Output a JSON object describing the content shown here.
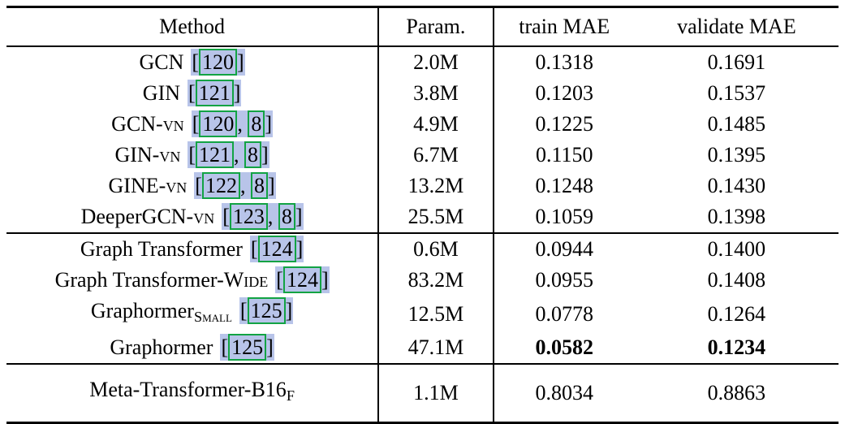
{
  "colors": {
    "cite_bg": "#b8c4e9",
    "cite_border": "#12a344",
    "rule": "#000000",
    "text": "#000000",
    "background": "#ffffff"
  },
  "table": {
    "headers": [
      {
        "key": "method",
        "label": "Method"
      },
      {
        "key": "param",
        "label": "Param."
      },
      {
        "key": "train",
        "label": "train MAE"
      },
      {
        "key": "validate",
        "label": "validate MAE"
      }
    ],
    "groups": [
      {
        "rows": [
          {
            "method": [
              {
                "text": "GCN"
              }
            ],
            "cites": [
              "120"
            ],
            "param": "2.0M",
            "train_mae": "0.1318",
            "validate_mae": "0.1691",
            "bold_metrics": false
          },
          {
            "method": [
              {
                "text": "GIN"
              }
            ],
            "cites": [
              "121"
            ],
            "param": "3.8M",
            "train_mae": "0.1203",
            "validate_mae": "0.1537",
            "bold_metrics": false
          },
          {
            "method": [
              {
                "text": "GCN-"
              },
              {
                "text": "vn",
                "style": "sc"
              }
            ],
            "cites": [
              "120",
              "8"
            ],
            "param": "4.9M",
            "train_mae": "0.1225",
            "validate_mae": "0.1485",
            "bold_metrics": false
          },
          {
            "method": [
              {
                "text": "GIN-"
              },
              {
                "text": "vn",
                "style": "sc"
              }
            ],
            "cites": [
              "121",
              "8"
            ],
            "param": "6.7M",
            "train_mae": "0.1150",
            "validate_mae": "0.1395",
            "bold_metrics": false
          },
          {
            "method": [
              {
                "text": "GINE-"
              },
              {
                "text": "vn",
                "style": "sc"
              }
            ],
            "cites": [
              "122",
              "8"
            ],
            "param": "13.2M",
            "train_mae": "0.1248",
            "validate_mae": "0.1430",
            "bold_metrics": false
          },
          {
            "method": [
              {
                "text": "DeeperGCN-"
              },
              {
                "text": "vn",
                "style": "sc"
              }
            ],
            "cites": [
              "123",
              "8"
            ],
            "param": "25.5M",
            "train_mae": "0.1059",
            "validate_mae": "0.1398",
            "bold_metrics": false
          }
        ]
      },
      {
        "rows": [
          {
            "method": [
              {
                "text": "Graph Transformer"
              }
            ],
            "cites": [
              "124"
            ],
            "param": "0.6M",
            "train_mae": "0.0944",
            "validate_mae": "0.1400",
            "bold_metrics": false
          },
          {
            "method": [
              {
                "text": "Graph Transformer-"
              },
              {
                "text": "Wide",
                "style": "sc"
              }
            ],
            "cites": [
              "124"
            ],
            "param": "83.2M",
            "train_mae": "0.0955",
            "validate_mae": "0.1408",
            "bold_metrics": false
          },
          {
            "method": [
              {
                "text": "Graphormer"
              },
              {
                "text": "Small",
                "style": "subsc"
              }
            ],
            "cites": [
              "125"
            ],
            "param": "12.5M",
            "train_mae": "0.0778",
            "validate_mae": "0.1264",
            "bold_metrics": false
          },
          {
            "method": [
              {
                "text": "Graphormer"
              }
            ],
            "cites": [
              "125"
            ],
            "param": "47.1M",
            "train_mae": "0.0582",
            "validate_mae": "0.1234",
            "bold_metrics": true
          }
        ]
      },
      {
        "rows": [
          {
            "method": [
              {
                "text": "Meta-Transformer-B16"
              },
              {
                "text": "F",
                "style": "sub"
              }
            ],
            "cites": [],
            "param": "1.1M",
            "train_mae": "0.8034",
            "validate_mae": "0.8863",
            "bold_metrics": false
          }
        ]
      }
    ]
  }
}
